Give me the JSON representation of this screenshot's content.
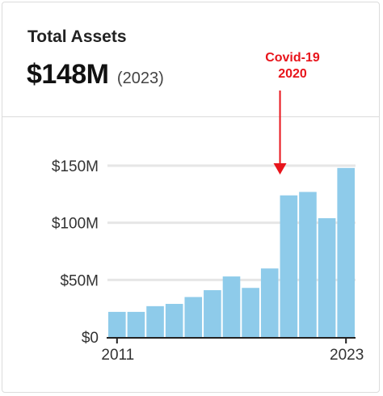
{
  "card": {
    "title": "Total Assets",
    "value": "$148M",
    "value_year": "(2023)"
  },
  "annotation": {
    "line1": "Covid-19",
    "line2": "2020",
    "color": "#e8141b"
  },
  "colors": {
    "bar": "#8ecbea",
    "grid": "#e6e6e6",
    "axis": "#222222"
  },
  "chart_data": {
    "type": "bar",
    "categories": [
      "2011",
      "2012",
      "2013",
      "2014",
      "2015",
      "2016",
      "2017",
      "2018",
      "2019",
      "2020",
      "2021",
      "2022",
      "2023"
    ],
    "values": [
      22,
      22,
      27,
      29,
      35,
      41,
      53,
      43,
      60,
      124,
      127,
      104,
      148
    ],
    "unit": "$M",
    "ylim": [
      0,
      150
    ],
    "y_ticks": [
      {
        "value": 0,
        "label": "$0"
      },
      {
        "value": 50,
        "label": "$50M"
      },
      {
        "value": 100,
        "label": "$100M"
      },
      {
        "value": 150,
        "label": "$150M"
      }
    ],
    "x_tick_labels": [
      {
        "category": "2011",
        "label": "2011"
      },
      {
        "category": "2023",
        "label": "2023"
      }
    ],
    "grid": true,
    "annotation_category": "2020"
  }
}
